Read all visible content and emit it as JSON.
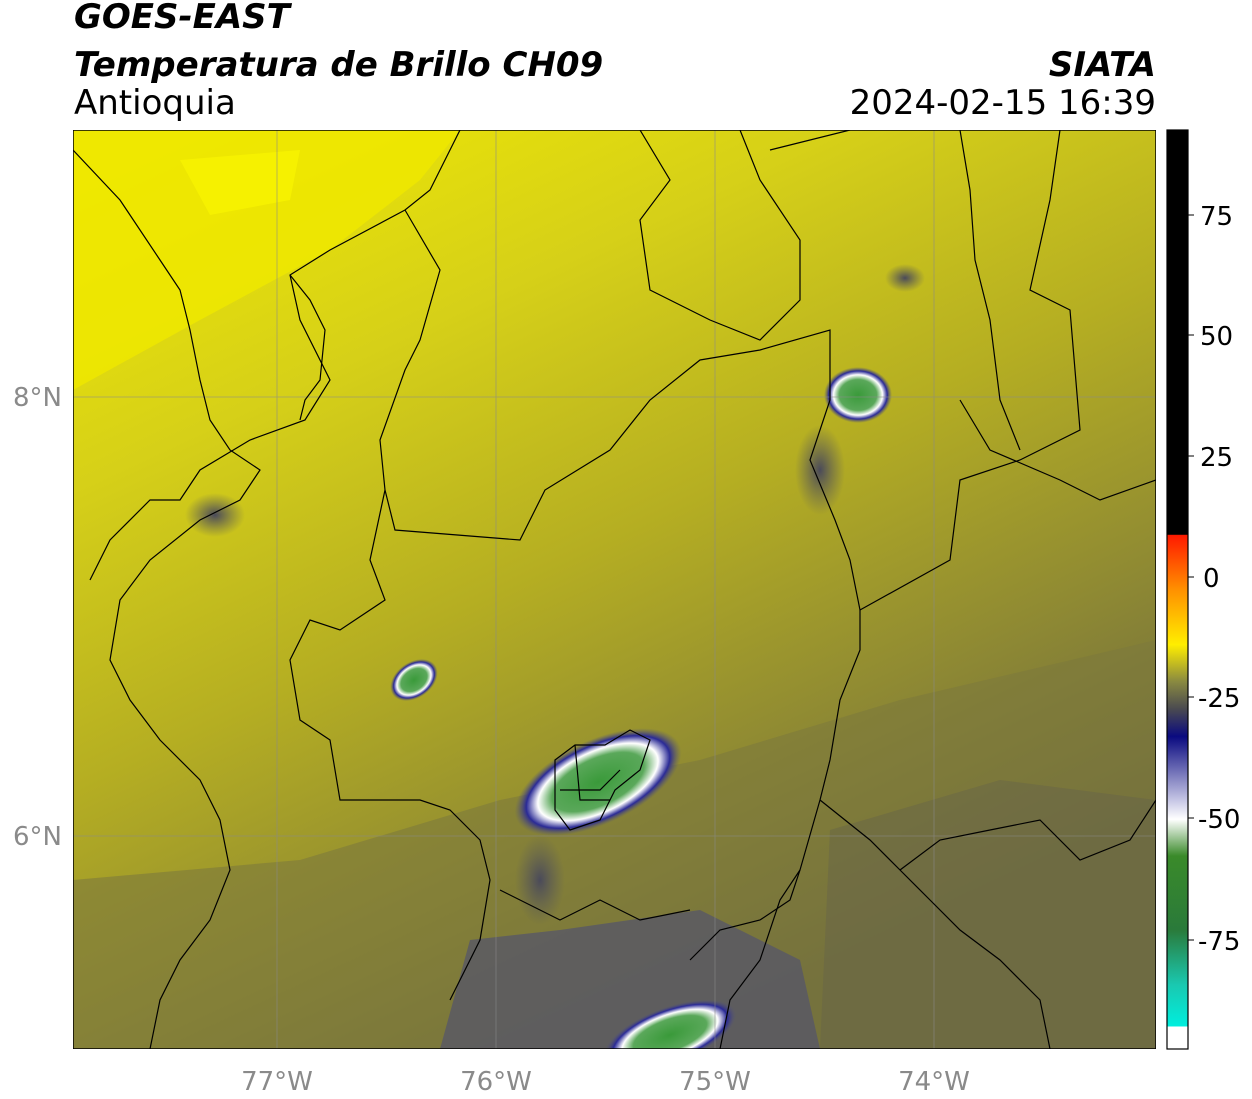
{
  "header": {
    "title": "GOES-EAST",
    "subtitle": "Temperatura de Brillo CH09",
    "region": "Antioquia",
    "organization": "SIATA",
    "datetime": "2024-02-15 16:39"
  },
  "map": {
    "lon_ticks": [
      "77°W",
      "76°W",
      "75°W",
      "74°W"
    ],
    "lat_ticks": [
      "8°N",
      "6°N"
    ],
    "gridlines": true
  },
  "colorbar": {
    "ticks": [
      "75",
      "50",
      "25",
      "0",
      "-25",
      "-50",
      "-75"
    ],
    "colors": {
      "black": "#000000",
      "red": "#ff1a00",
      "orange": "#ff9900",
      "yellow": "#ffee00",
      "olive": "#6b6b40",
      "navy": "#0a0a80",
      "white": "#ffffff",
      "green": "#2e8b2e",
      "cyan": "#00e5d0"
    }
  },
  "colors": {
    "background_yellow": "#e6e000",
    "mid_olive": "#b5b01e",
    "dark_olive": "#6e6a3a",
    "cloud_navy": "#0a0a80",
    "cloud_green": "#3a9a3a",
    "boundary": "#000000"
  }
}
